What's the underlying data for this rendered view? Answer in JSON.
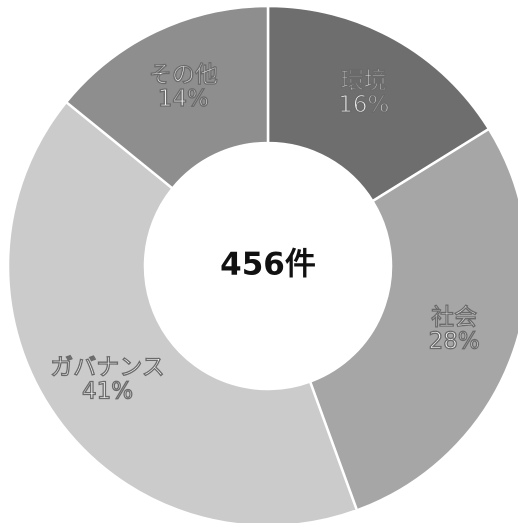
{
  "chart_data": {
    "type": "pie",
    "style": "donut",
    "center_label": "456件",
    "categories": [
      "環境",
      "社会",
      "ガバナンス",
      "その他"
    ],
    "values": [
      16,
      28,
      41,
      14
    ],
    "value_labels": [
      "16%",
      "28%",
      "41%",
      "14%"
    ],
    "colors": [
      "#6e6e6e",
      "#a6a6a6",
      "#cbcbcb",
      "#8e8e8e"
    ],
    "start": "12 o'clock",
    "direction": "clockwise"
  }
}
